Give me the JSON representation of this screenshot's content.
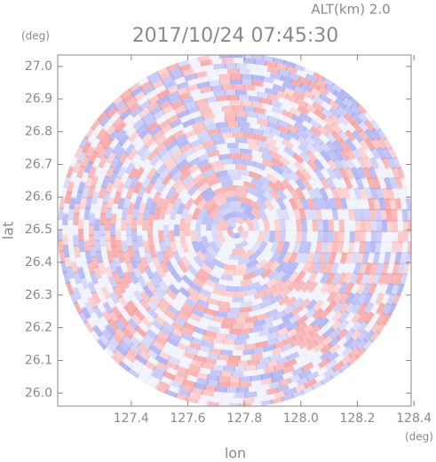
{
  "chart_data": {
    "type": "radar-image",
    "title": "2017/10/24 07:45:30",
    "annotation": "ALT(km) 2.0",
    "x_label": "lon",
    "y_label": "lat",
    "x_unit": "(deg)",
    "y_unit": "(deg)",
    "xlim": [
      127.14,
      128.39
    ],
    "ylim": [
      25.96,
      27.035
    ],
    "xticks": [
      127.4,
      127.6,
      127.8,
      {
        "value": 128.0,
        "label": "128.0"
      },
      128.2,
      128.4
    ],
    "yticks": [
      {
        "value": 26.0,
        "label": "26.0"
      },
      26.1,
      26.2,
      26.3,
      26.4,
      26.5,
      26.6,
      26.7,
      26.8,
      26.9,
      {
        "value": 27.0,
        "label": "27.0"
      }
    ]
  }
}
